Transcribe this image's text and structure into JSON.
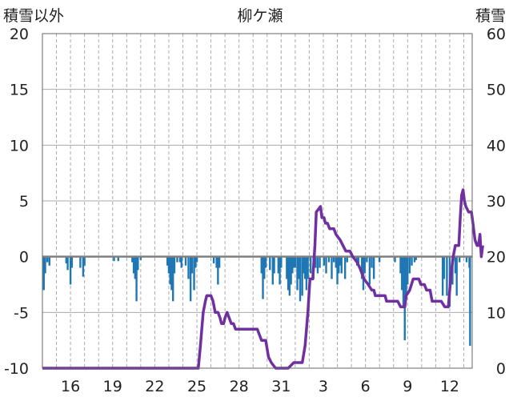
{
  "chart_data": {
    "type": "bar+line",
    "title": "柳ケ瀬",
    "left_axis_label": "積雪以外",
    "right_axis_label": "積雪",
    "left_ylim": [
      -10,
      20
    ],
    "left_ticks": [
      20,
      15,
      10,
      5,
      0,
      -5,
      -10
    ],
    "right_ylim": [
      0,
      60
    ],
    "right_ticks": [
      60,
      50,
      40,
      30,
      20,
      10,
      0
    ],
    "x_tick_labels": [
      "16",
      "19",
      "22",
      "25",
      "28",
      "31",
      "3",
      "6",
      "9",
      "12"
    ],
    "x_tick_positions_days": [
      2,
      5,
      8,
      11,
      14,
      17,
      20,
      23,
      26,
      29
    ],
    "x_range_days": [
      0,
      30.6
    ],
    "grid": "dashed-vertical-daily, solid-horizontal",
    "colors": {
      "bars": "#1f77b4",
      "line": "#7030a0",
      "zero_line": "#7f7f7f",
      "grid": "#aaaaaa"
    },
    "bars": [
      [
        0.1,
        -3.0
      ],
      [
        0.2,
        -1.5
      ],
      [
        0.35,
        -0.5
      ],
      [
        0.5,
        -0.8
      ],
      [
        1.7,
        -0.6
      ],
      [
        1.8,
        -1.2
      ],
      [
        2.0,
        -2.5
      ],
      [
        2.1,
        -1.0
      ],
      [
        2.7,
        -1.0
      ],
      [
        2.9,
        -1.8
      ],
      [
        3.0,
        -0.8
      ],
      [
        5.1,
        -0.4
      ],
      [
        5.4,
        -0.4
      ],
      [
        6.4,
        -0.5
      ],
      [
        6.5,
        -1.5
      ],
      [
        6.6,
        -2.0
      ],
      [
        6.7,
        -4.0
      ],
      [
        6.8,
        -1.2
      ],
      [
        7.0,
        -0.3
      ],
      [
        8.9,
        -0.8
      ],
      [
        9.0,
        -1.5
      ],
      [
        9.1,
        -2.5
      ],
      [
        9.2,
        -3.0
      ],
      [
        9.3,
        -4.0
      ],
      [
        9.4,
        -1.5
      ],
      [
        9.6,
        -0.5
      ],
      [
        9.8,
        -0.5
      ],
      [
        9.9,
        -1.0
      ],
      [
        10.2,
        -0.8
      ],
      [
        10.4,
        -2.0
      ],
      [
        10.55,
        -4.0
      ],
      [
        10.65,
        -1.5
      ],
      [
        10.8,
        -3.0
      ],
      [
        10.9,
        -1.0
      ],
      [
        11.0,
        -0.5
      ],
      [
        12.2,
        -0.6
      ],
      [
        12.4,
        -1.0
      ],
      [
        12.5,
        -2.5
      ],
      [
        12.6,
        -1.0
      ],
      [
        15.6,
        -1.5
      ],
      [
        15.7,
        -3.8
      ],
      [
        15.8,
        -2.0
      ],
      [
        15.9,
        -1.0
      ],
      [
        16.2,
        -1.2
      ],
      [
        16.4,
        -2.5
      ],
      [
        16.5,
        -1.5
      ],
      [
        16.8,
        -1.5
      ],
      [
        16.9,
        -2.5
      ],
      [
        17.0,
        -1.0
      ],
      [
        17.4,
        -2.0
      ],
      [
        17.5,
        -3.0
      ],
      [
        17.6,
        -3.5
      ],
      [
        17.7,
        -2.5
      ],
      [
        17.8,
        -1.5
      ],
      [
        17.9,
        -1.0
      ],
      [
        18.0,
        -1.0
      ],
      [
        18.15,
        -3.0
      ],
      [
        18.25,
        -2.0
      ],
      [
        18.35,
        -4.0
      ],
      [
        18.5,
        -3.5
      ],
      [
        18.6,
        -1.5
      ],
      [
        18.7,
        -2.0
      ],
      [
        18.8,
        -3.0
      ],
      [
        18.9,
        -2.0
      ],
      [
        19.1,
        -1.5
      ],
      [
        19.3,
        -2.0
      ],
      [
        19.45,
        -1.0
      ],
      [
        19.6,
        -1.5
      ],
      [
        19.75,
        -1.0
      ],
      [
        20.05,
        -0.8
      ],
      [
        20.2,
        -1.5
      ],
      [
        20.4,
        -0.5
      ],
      [
        20.6,
        -2.0
      ],
      [
        20.75,
        -0.5
      ],
      [
        20.9,
        -1.0
      ],
      [
        21.0,
        -2.5
      ],
      [
        21.1,
        -1.5
      ],
      [
        21.2,
        -0.8
      ],
      [
        21.3,
        -1.5
      ],
      [
        21.55,
        -2.0
      ],
      [
        21.7,
        -0.5
      ],
      [
        22.4,
        -0.8
      ],
      [
        22.5,
        -0.6
      ],
      [
        22.75,
        -2.0
      ],
      [
        22.85,
        -3.0
      ],
      [
        22.95,
        -1.5
      ],
      [
        23.1,
        -0.5
      ],
      [
        23.3,
        -2.5
      ],
      [
        23.45,
        -1.0
      ],
      [
        23.6,
        -2.0
      ],
      [
        24.0,
        -0.5
      ],
      [
        25.1,
        -0.5
      ],
      [
        25.5,
        -1.5
      ],
      [
        25.6,
        -3.0
      ],
      [
        25.7,
        -4.5
      ],
      [
        25.8,
        -7.5
      ],
      [
        25.9,
        -3.5
      ],
      [
        26.0,
        -2.5
      ],
      [
        26.15,
        -1.5
      ],
      [
        26.3,
        -0.8
      ],
      [
        26.5,
        -0.5
      ],
      [
        26.6,
        -0.3
      ],
      [
        28.5,
        -3.5
      ],
      [
        28.6,
        -2.0
      ],
      [
        28.8,
        -3.5
      ],
      [
        29.0,
        -4.5
      ],
      [
        29.2,
        -2.5
      ],
      [
        29.4,
        -1.5
      ],
      [
        29.5,
        -3.5
      ],
      [
        29.7,
        -0.5
      ],
      [
        30.2,
        -0.5
      ],
      [
        30.4,
        -1.0
      ],
      [
        30.45,
        -8.0
      ]
    ],
    "snow_depth": [
      [
        0,
        0
      ],
      [
        11.1,
        0
      ],
      [
        11.25,
        4
      ],
      [
        11.45,
        10
      ],
      [
        11.6,
        12
      ],
      [
        11.7,
        13
      ],
      [
        12.0,
        13
      ],
      [
        12.15,
        12
      ],
      [
        12.3,
        10
      ],
      [
        12.5,
        10
      ],
      [
        12.65,
        9
      ],
      [
        12.75,
        8
      ],
      [
        12.9,
        8
      ],
      [
        13.0,
        9
      ],
      [
        13.15,
        10
      ],
      [
        13.3,
        9
      ],
      [
        13.45,
        8
      ],
      [
        13.6,
        8
      ],
      [
        13.75,
        7
      ],
      [
        14.0,
        7
      ],
      [
        15.0,
        7
      ],
      [
        15.3,
        7
      ],
      [
        15.45,
        6
      ],
      [
        15.6,
        5
      ],
      [
        15.9,
        5
      ],
      [
        16.1,
        2
      ],
      [
        16.3,
        1
      ],
      [
        16.6,
        0
      ],
      [
        17.5,
        0
      ],
      [
        17.9,
        1
      ],
      [
        18.5,
        1
      ],
      [
        18.7,
        4
      ],
      [
        18.9,
        10
      ],
      [
        19.05,
        16
      ],
      [
        19.25,
        16
      ],
      [
        19.4,
        22
      ],
      [
        19.5,
        28
      ],
      [
        19.8,
        29
      ],
      [
        19.9,
        27
      ],
      [
        20.05,
        27
      ],
      [
        20.15,
        26
      ],
      [
        20.3,
        26
      ],
      [
        20.45,
        25
      ],
      [
        20.75,
        25
      ],
      [
        20.9,
        24
      ],
      [
        21.2,
        23
      ],
      [
        21.4,
        22
      ],
      [
        21.6,
        21
      ],
      [
        21.9,
        21
      ],
      [
        22.1,
        20
      ],
      [
        22.4,
        19
      ],
      [
        22.6,
        18
      ],
      [
        22.9,
        16
      ],
      [
        23.2,
        15
      ],
      [
        23.45,
        14
      ],
      [
        23.6,
        14
      ],
      [
        23.7,
        13
      ],
      [
        24.0,
        13
      ],
      [
        24.4,
        13
      ],
      [
        24.5,
        12
      ],
      [
        25.3,
        12
      ],
      [
        25.5,
        11
      ],
      [
        25.8,
        11
      ],
      [
        25.9,
        13
      ],
      [
        26.15,
        14
      ],
      [
        26.4,
        16
      ],
      [
        26.8,
        16
      ],
      [
        26.95,
        15
      ],
      [
        27.2,
        15
      ],
      [
        27.35,
        14
      ],
      [
        27.6,
        14
      ],
      [
        27.75,
        12
      ],
      [
        28.4,
        12
      ],
      [
        28.65,
        11
      ],
      [
        28.9,
        11
      ],
      [
        29.1,
        17
      ],
      [
        29.25,
        20
      ],
      [
        29.4,
        22
      ],
      [
        29.65,
        22
      ],
      [
        29.75,
        27
      ],
      [
        29.85,
        31
      ],
      [
        29.95,
        32
      ],
      [
        30.05,
        30
      ],
      [
        30.15,
        29
      ],
      [
        30.35,
        28
      ],
      [
        30.55,
        28
      ],
      [
        30.65,
        26
      ],
      [
        30.8,
        23
      ],
      [
        30.95,
        22
      ],
      [
        31.05,
        22
      ],
      [
        31.15,
        24
      ],
      [
        31.25,
        20
      ],
      [
        31.35,
        22
      ]
    ]
  }
}
